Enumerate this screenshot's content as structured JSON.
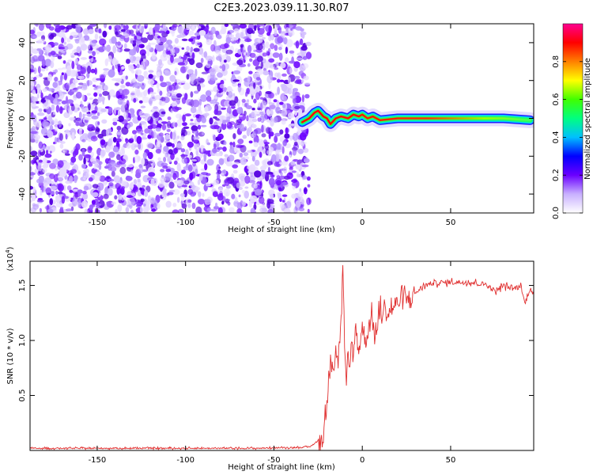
{
  "title": "C2E3.2023.039.11.30.R07",
  "chart_data": [
    {
      "type": "heatmap",
      "xlabel": "Height of straight line (km)",
      "ylabel": "Frequency (Hz)",
      "xlim": [
        -188,
        97
      ],
      "ylim": [
        -50,
        50
      ],
      "x_ticks": [
        -150,
        -100,
        -50,
        0,
        50
      ],
      "y_ticks": [
        -40,
        -20,
        0,
        20,
        40
      ],
      "noise_region_x": [
        -188,
        -32
      ],
      "ridge_path": [
        [
          -34,
          -2
        ],
        [
          -30,
          0
        ],
        [
          -27,
          3
        ],
        [
          -25,
          4
        ],
        [
          -22,
          1
        ],
        [
          -20,
          0
        ],
        [
          -18,
          -3
        ],
        [
          -15,
          0
        ],
        [
          -12,
          1
        ],
        [
          -8,
          0
        ],
        [
          -5,
          2
        ],
        [
          -2,
          1
        ],
        [
          0,
          2
        ],
        [
          3,
          0
        ],
        [
          6,
          1
        ],
        [
          10,
          -1
        ],
        [
          20,
          0
        ],
        [
          40,
          0
        ],
        [
          60,
          0
        ],
        [
          80,
          0
        ],
        [
          95,
          -1
        ]
      ],
      "colorbar": {
        "label": "Normalized spectral amplitude",
        "range": [
          0,
          1
        ],
        "ticks": [
          "0.0",
          "0.2",
          "0.4",
          "0.6",
          "0.8"
        ],
        "colors": [
          "#ffffff",
          "#c8b0ff",
          "#6a00ff",
          "#0000ff",
          "#00c0ff",
          "#00ff80",
          "#40ff00",
          "#ffff00",
          "#ff8000",
          "#ff0000",
          "#ff0090"
        ]
      }
    },
    {
      "type": "line",
      "xlabel": "Height of straight line (km)",
      "ylabel": "SNR (10 * v/v)",
      "yscale_label": "(x10",
      "yscale_exp": "4",
      "xlim": [
        -188,
        97
      ],
      "ylim": [
        0,
        17200
      ],
      "x_ticks": [
        -150,
        -100,
        -50,
        0,
        50
      ],
      "y_ticks": [
        5000,
        10000,
        15000
      ],
      "y_tick_labels": [
        "0.5",
        "1.0",
        "1.5"
      ],
      "line_color": "#e03030",
      "series": [
        {
          "x": [
            -188,
            -150,
            -100,
            -60,
            -30,
            -22,
            -20,
            -19,
            -18,
            -17,
            -16,
            -15,
            -14,
            -13,
            -12,
            -11,
            -10,
            -9,
            -8,
            -7,
            -6,
            -5,
            -4,
            -2,
            0,
            2,
            5,
            8,
            10,
            15,
            20,
            25,
            30,
            35,
            40,
            50,
            60,
            70,
            75,
            80,
            85,
            90,
            92,
            95,
            97
          ],
          "y": [
            200,
            200,
            200,
            200,
            300,
            1200,
            4200,
            6500,
            9000,
            8200,
            7500,
            9300,
            8000,
            10000,
            11000,
            17200,
            9500,
            5200,
            8500,
            7000,
            10500,
            8000,
            11500,
            9000,
            11200,
            10000,
            12000,
            10500,
            12800,
            12500,
            13500,
            13700,
            14300,
            15000,
            15200,
            15300,
            15300,
            15100,
            14500,
            15000,
            14700,
            14900,
            13300,
            14800,
            14100
          ]
        }
      ]
    }
  ]
}
